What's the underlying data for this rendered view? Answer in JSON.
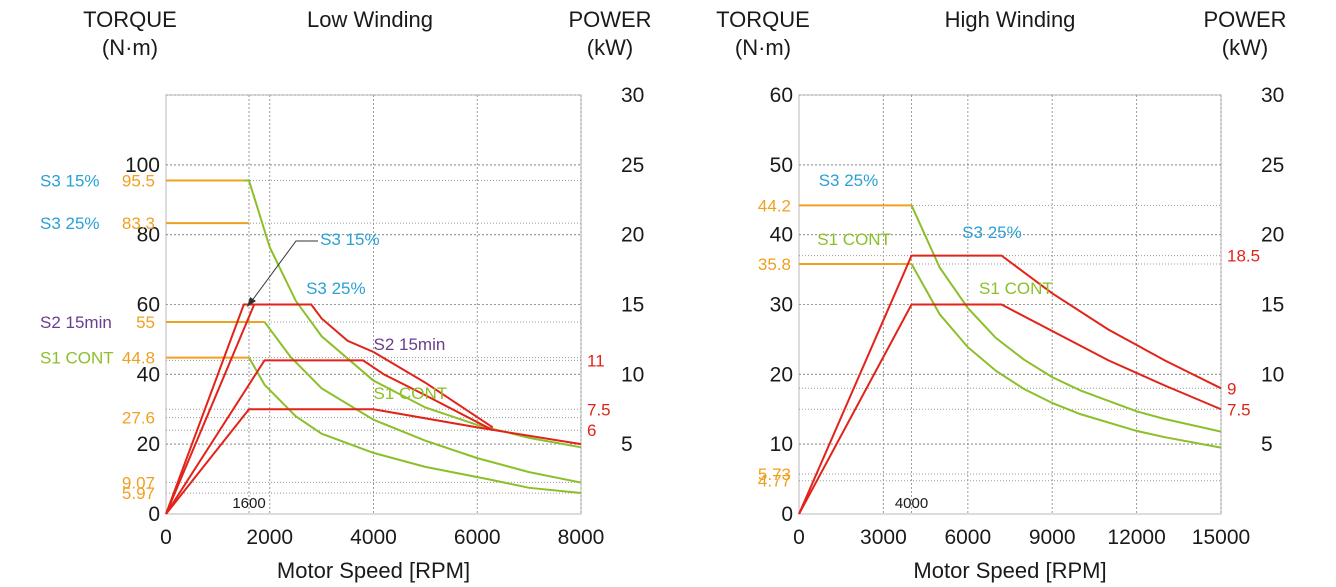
{
  "colors": {
    "orange": "#f0a020",
    "green": "#8cbf2a",
    "red": "#e2231a",
    "cyan": "#2aa0d4",
    "purple": "#6a3d91",
    "grid": "#999999",
    "text": "#1a1a1a"
  },
  "chart_data": [
    {
      "type": "line",
      "title": "Low Winding",
      "left_axis_label": [
        "TORQUE",
        "(N·m)"
      ],
      "right_axis_label": [
        "POWER",
        "(kW)"
      ],
      "xlabel": "Motor Speed [RPM]",
      "xlim": [
        0,
        8000
      ],
      "xticks": [
        "0",
        "2000",
        "4000",
        "6000",
        "8000"
      ],
      "torque_lim": [
        0,
        120
      ],
      "torque_ticks": [
        "0",
        "20",
        "40",
        "60",
        "80",
        "100"
      ],
      "power_lim": [
        0,
        30
      ],
      "power_ticks": [
        "5",
        "10",
        "15",
        "20",
        "25",
        "30"
      ],
      "base_speed_label": "1600",
      "torque_series": [
        {
          "name": "S3 15%",
          "points": [
            [
              0,
              95.5
            ],
            [
              1500,
              95.5
            ],
            [
              1600,
              95.5
            ],
            [
              2000,
              76.4
            ],
            [
              2500,
              61.1
            ],
            [
              3000,
              50.9
            ],
            [
              4000,
              38.2
            ],
            [
              5000,
              30.5
            ],
            [
              6000,
              25.5
            ],
            [
              7000,
              21.8
            ],
            [
              8000,
              19.1
            ]
          ]
        },
        {
          "name": "S3 25%",
          "points": [
            [
              0,
              83.3
            ],
            [
              1600,
              83.3
            ]
          ]
        },
        {
          "name": "S2 15min",
          "points": [
            [
              0,
              55
            ],
            [
              1900,
              55
            ],
            [
              2400,
              45
            ],
            [
              3000,
              36
            ],
            [
              4000,
              27
            ],
            [
              5000,
              21
            ],
            [
              6000,
              16
            ],
            [
              7000,
              12
            ],
            [
              8000,
              9
            ]
          ]
        },
        {
          "name": "S1 CONT",
          "points": [
            [
              0,
              44.8
            ],
            [
              1600,
              44.8
            ],
            [
              1900,
              37
            ],
            [
              2500,
              28
            ],
            [
              3000,
              23
            ],
            [
              4000,
              17.5
            ],
            [
              5000,
              13.5
            ],
            [
              6200,
              10
            ],
            [
              7000,
              7.5
            ],
            [
              8000,
              6
            ]
          ]
        }
      ],
      "power_series": [
        {
          "name": "S3 15%",
          "points": [
            [
              0,
              0
            ],
            [
              1500,
              15
            ],
            [
              2800,
              15
            ],
            [
              3000,
              14
            ],
            [
              3500,
              12.4
            ],
            [
              4000,
              11.6
            ],
            [
              5000,
              9.4
            ],
            [
              6300,
              6.2
            ]
          ]
        },
        {
          "name": "S2 15min",
          "points": [
            [
              0,
              0
            ],
            [
              1700,
              15
            ]
          ]
        },
        {
          "name": "S3 25%",
          "points": [
            [
              0,
              0
            ],
            [
              1900,
              11
            ],
            [
              3800,
              11
            ],
            [
              4200,
              10
            ],
            [
              5000,
              8.5
            ],
            [
              6300,
              6
            ]
          ]
        },
        {
          "name": "S1 CONT",
          "points": [
            [
              0,
              0
            ],
            [
              1600,
              7.5
            ],
            [
              4000,
              7.5
            ],
            [
              6000,
              6.2
            ],
            [
              8000,
              5
            ]
          ]
        }
      ],
      "torque_markers": [
        {
          "label": "95.5",
          "value": 95.5
        },
        {
          "label": "83.3",
          "value": 83.3
        },
        {
          "label": "55",
          "value": 55
        },
        {
          "label": "44.8",
          "value": 44.8
        },
        {
          "label": "27.6",
          "value": 27.6
        },
        {
          "label": "9.07",
          "value": 9.07
        },
        {
          "label": "5.97",
          "value": 5.97
        }
      ],
      "power_markers": [
        {
          "label": "11",
          "value": 11
        },
        {
          "label": "7.5",
          "value": 7.5
        },
        {
          "label": "6",
          "value": 6
        }
      ],
      "left_annotations": [
        {
          "text": "S3 15%",
          "torque": 95.5
        },
        {
          "text": "S3 25%",
          "torque": 83.3
        },
        {
          "text": "S2 15min",
          "torque": 55
        },
        {
          "text": "S1 CONT",
          "torque": 44.8
        }
      ],
      "curve_annotations": [
        {
          "text": "S3 15%",
          "color": "cyan",
          "x": 2970,
          "torque": 77
        },
        {
          "text": "S3 25%",
          "color": "cyan",
          "x": 2700,
          "torque": 63
        },
        {
          "text": "S2 15min",
          "color": "purple",
          "x": 4000,
          "torque": 47
        },
        {
          "text": "S1 CONT",
          "color": "green",
          "x": 4000,
          "torque": 33
        }
      ]
    },
    {
      "type": "line",
      "title": "High Winding",
      "left_axis_label": [
        "TORQUE",
        "(N·m)"
      ],
      "right_axis_label": [
        "POWER",
        "(kW)"
      ],
      "xlabel": "Motor Speed [RPM]",
      "xlim": [
        0,
        15000
      ],
      "xticks": [
        "0",
        "3000",
        "6000",
        "9000",
        "12000",
        "15000"
      ],
      "torque_lim": [
        0,
        60
      ],
      "torque_ticks": [
        "0",
        "10",
        "20",
        "30",
        "40",
        "50",
        "60"
      ],
      "power_lim": [
        0,
        30
      ],
      "power_ticks": [
        "5",
        "10",
        "15",
        "20",
        "25",
        "30"
      ],
      "base_speed_label": "4000",
      "torque_series": [
        {
          "name": "S3 25%",
          "points": [
            [
              0,
              44.2
            ],
            [
              4000,
              44.2
            ],
            [
              5000,
              35.3
            ],
            [
              6000,
              29.5
            ],
            [
              7000,
              25.2
            ],
            [
              8000,
              22.1
            ],
            [
              9000,
              19.6
            ],
            [
              10000,
              17.7
            ],
            [
              12000,
              14.7
            ],
            [
              13000,
              13.6
            ],
            [
              15000,
              11.8
            ]
          ]
        },
        {
          "name": "S1 CONT",
          "points": [
            [
              0,
              35.8
            ],
            [
              4000,
              35.8
            ],
            [
              5000,
              28.6
            ],
            [
              6000,
              23.9
            ],
            [
              7000,
              20.5
            ],
            [
              8000,
              17.9
            ],
            [
              9000,
              15.9
            ],
            [
              10000,
              14.3
            ],
            [
              12000,
              11.9
            ],
            [
              13000,
              11
            ],
            [
              15000,
              9.5
            ]
          ]
        }
      ],
      "power_series": [
        {
          "name": "S3 25%",
          "points": [
            [
              0,
              0
            ],
            [
              4000,
              18.5
            ],
            [
              7200,
              18.5
            ],
            [
              9000,
              15.8
            ],
            [
              11000,
              13.2
            ],
            [
              13000,
              11
            ],
            [
              15000,
              9
            ]
          ]
        },
        {
          "name": "S1 CONT",
          "points": [
            [
              0,
              0
            ],
            [
              4000,
              15
            ],
            [
              7200,
              15
            ],
            [
              9000,
              13.1
            ],
            [
              11000,
              11
            ],
            [
              13000,
              9.2
            ],
            [
              15000,
              7.5
            ]
          ]
        }
      ],
      "torque_markers": [
        {
          "label": "44.2",
          "value": 44.2
        },
        {
          "label": "35.8",
          "value": 35.8
        },
        {
          "label": "5.73",
          "value": 5.73
        },
        {
          "label": "4.77",
          "value": 4.77
        }
      ],
      "power_markers": [
        {
          "label": "18.5",
          "value": 18.5
        },
        {
          "label": "9",
          "value": 9
        },
        {
          "label": "7.5",
          "value": 7.5
        }
      ],
      "left_annotations": [],
      "curve_annotations": [
        {
          "text": "S3 25%",
          "color": "cyan",
          "x": 700,
          "torque": 47
        },
        {
          "text": "S1 CONT",
          "color": "green",
          "x": 650,
          "torque": 38.5
        },
        {
          "text": "S3 25%",
          "color": "cyan",
          "x": 5800,
          "torque": 39.5
        },
        {
          "text": "S1 CONT",
          "color": "green",
          "x": 6400,
          "torque": 31.5
        }
      ]
    }
  ]
}
